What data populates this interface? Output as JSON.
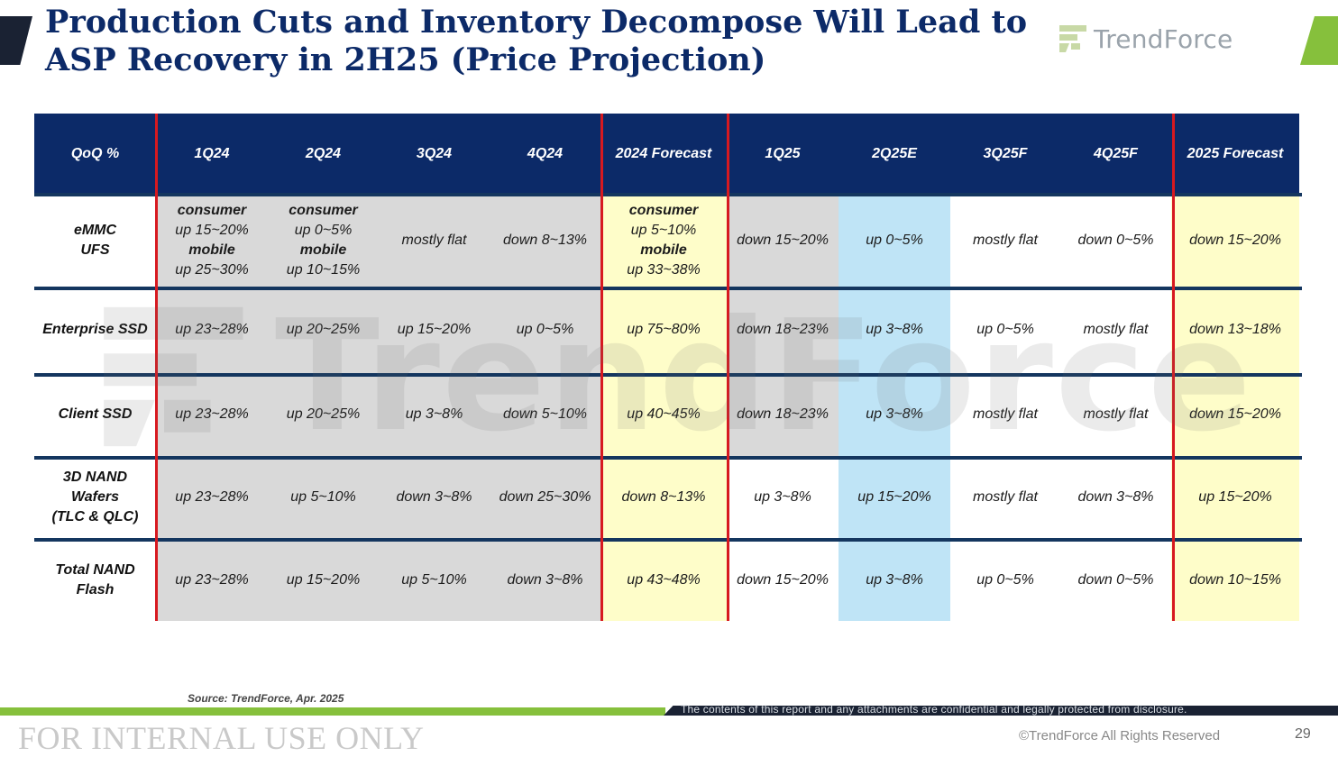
{
  "slide": {
    "title": "Production Cuts and Inventory Decompose Will Lead to\nASP Recovery  in 2H25 (Price Projection)",
    "brand": {
      "name": "TrendForce",
      "icon": "trendforce-logo-icon",
      "watermark_text": "TrendForce"
    },
    "source": "Source: TrendForce, Apr. 2025",
    "confidential_notice": "The contents of this report and any attachments are confidential and legally protected from disclosure.",
    "internal_label": "FOR INTERNAL USE ONLY",
    "copyright": "©TrendForce All Rights Reserved",
    "page_number": "29",
    "colors": {
      "header": "#0c2a68",
      "divider_red": "#d71920",
      "divider_navy": "#14365f",
      "gray_cell": "#d9d9d9",
      "yellow_cell": "#fefdc9",
      "blue_cell": "#bfe4f6",
      "accent_green": "#86c03c"
    }
  },
  "table": {
    "headers": [
      "QoQ %",
      "1Q24",
      "2Q24",
      "3Q24",
      "4Q24",
      "2024 Forecast",
      "1Q25",
      "2Q25E",
      "3Q25F",
      "4Q25F",
      "2025 Forecast"
    ],
    "rows": [
      {
        "label": "eMMC\nUFS",
        "cells": [
          [
            {
              "t": "consumer",
              "b": true
            },
            {
              "t": "up 15~20%"
            },
            {
              "t": "mobile",
              "b": true
            },
            {
              "t": "up 25~30%"
            }
          ],
          [
            {
              "t": "consumer",
              "b": true
            },
            {
              "t": "up 0~5%"
            },
            {
              "t": "mobile",
              "b": true
            },
            {
              "t": "up 10~15%"
            }
          ],
          [
            {
              "t": "mostly flat"
            }
          ],
          [
            {
              "t": "down 8~13%"
            }
          ],
          [
            {
              "t": "consumer",
              "b": true
            },
            {
              "t": "up 5~10%"
            },
            {
              "t": "mobile",
              "b": true
            },
            {
              "t": "up 33~38%"
            }
          ],
          [
            {
              "t": "down 15~20%"
            }
          ],
          [
            {
              "t": "up 0~5%"
            }
          ],
          [
            {
              "t": "mostly flat"
            }
          ],
          [
            {
              "t": "down 0~5%"
            }
          ],
          [
            {
              "t": "down 15~20%"
            }
          ]
        ]
      },
      {
        "label": "Enterprise SSD",
        "cells": [
          [
            {
              "t": "up 23~28%"
            }
          ],
          [
            {
              "t": "up 20~25%"
            }
          ],
          [
            {
              "t": "up 15~20%"
            }
          ],
          [
            {
              "t": "up 0~5%"
            }
          ],
          [
            {
              "t": "up 75~80%"
            }
          ],
          [
            {
              "t": "down 18~23%"
            }
          ],
          [
            {
              "t": "up 3~8%"
            }
          ],
          [
            {
              "t": "up 0~5%"
            }
          ],
          [
            {
              "t": "mostly flat"
            }
          ],
          [
            {
              "t": "down 13~18%"
            }
          ]
        ]
      },
      {
        "label": "Client SSD",
        "cells": [
          [
            {
              "t": "up 23~28%"
            }
          ],
          [
            {
              "t": "up 20~25%"
            }
          ],
          [
            {
              "t": "up 3~8%"
            }
          ],
          [
            {
              "t": "down 5~10%"
            }
          ],
          [
            {
              "t": "up 40~45%"
            }
          ],
          [
            {
              "t": "down 18~23%"
            }
          ],
          [
            {
              "t": "up 3~8%"
            }
          ],
          [
            {
              "t": "mostly flat"
            }
          ],
          [
            {
              "t": "mostly flat"
            }
          ],
          [
            {
              "t": "down 15~20%"
            }
          ]
        ]
      },
      {
        "label": "3D NAND\nWafers\n(TLC & QLC)",
        "cells": [
          [
            {
              "t": "up 23~28%"
            }
          ],
          [
            {
              "t": "up 5~10%"
            }
          ],
          [
            {
              "t": "down 3~8%"
            }
          ],
          [
            {
              "t": "down 25~30%"
            }
          ],
          [
            {
              "t": "down 8~13%"
            }
          ],
          [
            {
              "t": "up 3~8%"
            }
          ],
          [
            {
              "t": "up 15~20%"
            }
          ],
          [
            {
              "t": "mostly flat"
            }
          ],
          [
            {
              "t": "down 3~8%"
            }
          ],
          [
            {
              "t": "up 15~20%"
            }
          ]
        ]
      },
      {
        "label": "Total NAND\nFlash",
        "cells": [
          [
            {
              "t": "up 23~28%"
            }
          ],
          [
            {
              "t": "up 15~20%"
            }
          ],
          [
            {
              "t": "up 5~10%"
            }
          ],
          [
            {
              "t": "down 3~8%"
            }
          ],
          [
            {
              "t": "up 43~48%"
            }
          ],
          [
            {
              "t": "down 15~20%"
            }
          ],
          [
            {
              "t": "up 3~8%"
            }
          ],
          [
            {
              "t": "up 0~5%"
            }
          ],
          [
            {
              "t": "down 0~5%"
            }
          ],
          [
            {
              "t": "down 10~15%"
            }
          ]
        ]
      }
    ]
  }
}
